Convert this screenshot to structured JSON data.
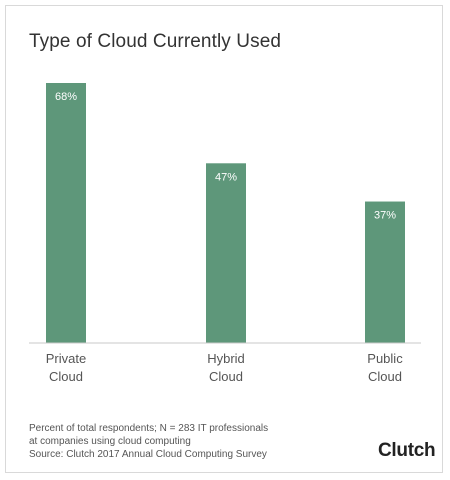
{
  "chart_data": {
    "type": "bar",
    "title": "Type of Cloud Currently Used",
    "categories": [
      [
        "Private",
        "Cloud"
      ],
      [
        "Hybrid",
        "Cloud"
      ],
      [
        "Public",
        "Cloud"
      ]
    ],
    "values": [
      68,
      47,
      37
    ],
    "value_labels": [
      "68%",
      "47%",
      "37%"
    ],
    "ylim": [
      0,
      68
    ],
    "grid": false,
    "bar_color": "#5e977a"
  },
  "notes": [
    "Percent of total respondents; N = 283 IT professionals",
    "at companies using cloud computing",
    "Source: Clutch 2017 Annual Cloud Computing Survey"
  ],
  "brand": "Clutch",
  "colors": {
    "bar": "#5e977a",
    "axis": "#c8c8c8",
    "label": "#ffffff",
    "text": "#555555"
  }
}
